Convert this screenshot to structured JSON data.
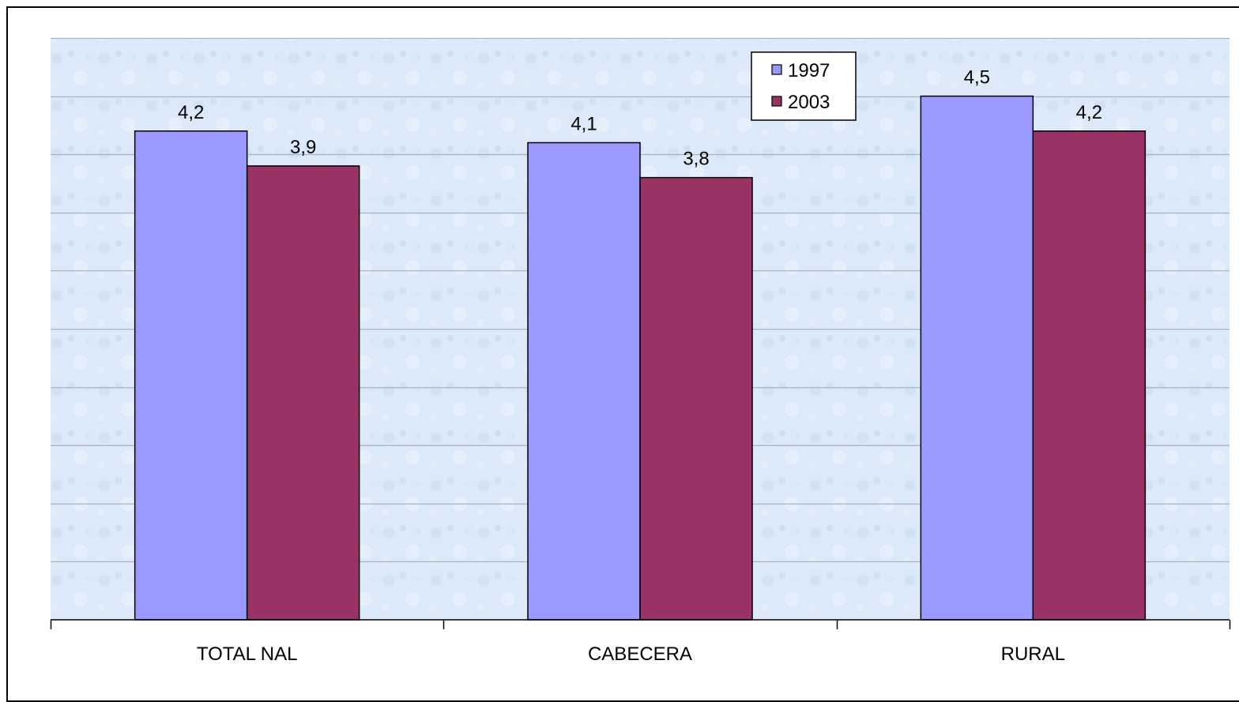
{
  "chart_data": {
    "type": "bar",
    "categories": [
      "TOTAL NAL",
      "CABECERA",
      "RURAL"
    ],
    "series": [
      {
        "name": "1997",
        "values": [
          4.2,
          4.1,
          4.5
        ],
        "labels": [
          "4,2",
          "4,1",
          "4,5"
        ],
        "color": "#9999ff"
      },
      {
        "name": "2003",
        "values": [
          3.9,
          3.8,
          4.2
        ],
        "labels": [
          "3,9",
          "3,8",
          "4,2"
        ],
        "color": "#993366"
      }
    ],
    "title": "",
    "xlabel": "",
    "ylabel": "",
    "ylim": [
      0,
      5
    ],
    "grid": true,
    "legend": "top-center",
    "plot_background": "#dce9f8",
    "grid_color": "#a6b4c4"
  }
}
